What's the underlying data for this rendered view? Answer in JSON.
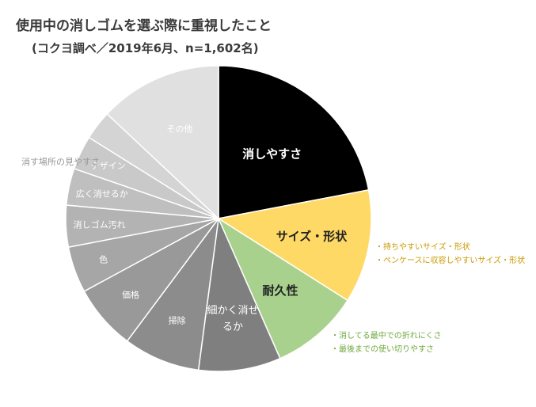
{
  "title": "使用中の消しゴムを選ぶ際に重視したこと",
  "subtitle": "(コクヨ調べ／2019年6月、n=1,602名)",
  "chart_data": {
    "type": "pie",
    "title": "使用中の消しゴムを選ぶ際に重視したこと",
    "subtitle": "(コクヨ調べ／2019年6月、n=1,602名)",
    "start": "12 o'clock, clockwise",
    "slices": [
      {
        "label": "消しやすさ",
        "value": 22.0,
        "color": "#000000",
        "label_color": "#ffffff"
      },
      {
        "label": "サイズ・形状",
        "value": 12.0,
        "color": "#ffd966",
        "label_color": "#222222"
      },
      {
        "label": "耐久性",
        "value": 9.4,
        "color": "#a9d18e",
        "label_color": "#222222"
      },
      {
        "label": "細かく消せるか",
        "value": 8.7,
        "color": "#7f7f7f",
        "label_color": "#ffffff"
      },
      {
        "label": "掃除",
        "value": 8.1,
        "color": "#8c8c8c",
        "label_color": "#ffffff"
      },
      {
        "label": "価格",
        "value": 6.9,
        "color": "#999999",
        "label_color": "#ffffff"
      },
      {
        "label": "色",
        "value": 4.9,
        "color": "#a6a6a6",
        "label_color": "#ffffff"
      },
      {
        "label": "消しゴム汚れ",
        "value": 4.4,
        "color": "#b3b3b3",
        "label_color": "#ffffff"
      },
      {
        "label": "広く消せるか",
        "value": 3.9,
        "color": "#bfbfbf",
        "label_color": "#ffffff"
      },
      {
        "label": "デザイン",
        "value": 3.6,
        "color": "#c9c9c9",
        "label_color": "#ffffff"
      },
      {
        "label": "消す場所の見やすさ",
        "value": 3.1,
        "color": "#d4d4d4",
        "label_color": "#ffffff"
      },
      {
        "label": "その他",
        "value": 13.0,
        "color": "#e0e0e0",
        "label_color": "#ffffff"
      }
    ],
    "annotations": [
      {
        "slice": "サイズ・形状",
        "color": "#c99a00",
        "lines": [
          "・持ちやすいサイズ・形状",
          "・ペンケースに収容しやすいサイズ・形状"
        ]
      },
      {
        "slice": "耐久性",
        "color": "#6fa83c",
        "lines": [
          "・消してる最中での折れにくさ",
          "・最後までの使い切りやすさ"
        ]
      }
    ]
  }
}
